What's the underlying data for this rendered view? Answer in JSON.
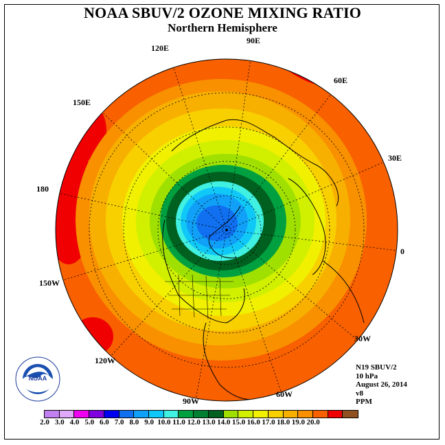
{
  "title": "NOAA SBUV/2 OZONE MIXING RATIO",
  "subtitle": "Northern Hemisphere",
  "longitude_labels": [
    "90E",
    "60E",
    "30E",
    "0",
    "30W",
    "60W",
    "90W",
    "120W",
    "150W",
    "180",
    "150E",
    "120E"
  ],
  "info": {
    "satellite": "N19 SBUV/2",
    "pressure": "10 hPa",
    "date": "August 26, 2014",
    "version": "v8",
    "units": "PPM"
  },
  "logo_text": "NOAA",
  "colorbar": {
    "colors": [
      "#c080f0",
      "#e0a8f8",
      "#f000f0",
      "#8000e0",
      "#0000f0",
      "#1070f0",
      "#10a0f8",
      "#10c8f8",
      "#40f0e0",
      "#00a040",
      "#008030",
      "#006020",
      "#a0e000",
      "#d0f000",
      "#f0f000",
      "#f8d000",
      "#f8b000",
      "#f89000",
      "#f86000",
      "#f00000",
      "#905020"
    ],
    "tick_labels": [
      "2.0",
      "3.0",
      "4.0",
      "5.0",
      "6.0",
      "7.0",
      "8.0",
      "9.0",
      "10.0",
      "11.0",
      "12.0",
      "13.0",
      "14.0",
      "15.0",
      "16.0",
      "17.0",
      "18.0",
      "19.0",
      "20.0"
    ]
  }
}
